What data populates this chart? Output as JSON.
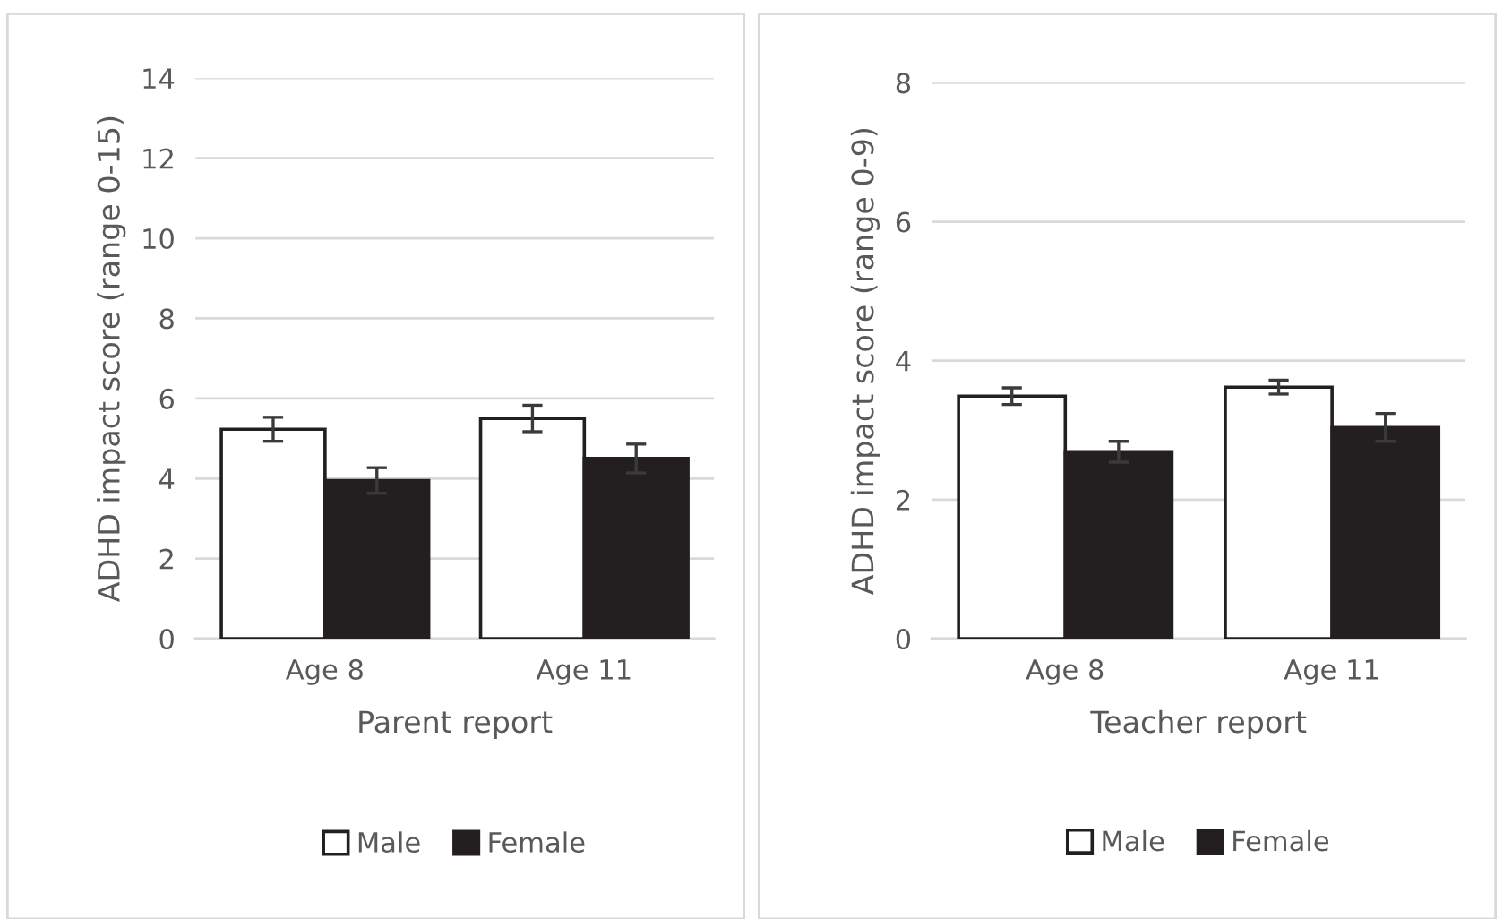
{
  "chart_data": [
    {
      "type": "bar",
      "xlabel": "Parent report",
      "ylabel": "ADHD impact score (range 0-15)",
      "categories": [
        "Age 8",
        "Age 11"
      ],
      "series": [
        {
          "name": "Male",
          "color": "#ffffff",
          "values": [
            5.23,
            5.5
          ],
          "errors": [
            0.3,
            0.33
          ]
        },
        {
          "name": "Female",
          "color": "#231f20",
          "values": [
            3.95,
            4.5
          ],
          "errors": [
            0.32,
            0.36
          ]
        }
      ],
      "ylim": [
        0,
        14
      ],
      "yticks": [
        0,
        2,
        4,
        6,
        8,
        10,
        12,
        14
      ],
      "grid": "y",
      "legend": "bottom"
    },
    {
      "type": "bar",
      "xlabel": "Teacher report",
      "ylabel": "ADHD impact score (range 0-9)",
      "categories": [
        "Age 8",
        "Age 11"
      ],
      "series": [
        {
          "name": "Male",
          "color": "#ffffff",
          "values": [
            3.49,
            3.62
          ],
          "errors": [
            0.12,
            0.1
          ]
        },
        {
          "name": "Female",
          "color": "#231f20",
          "values": [
            2.69,
            3.04
          ],
          "errors": [
            0.15,
            0.2
          ]
        }
      ],
      "ylim": [
        0,
        8
      ],
      "yticks": [
        0,
        2,
        4,
        6,
        8
      ],
      "grid": "y",
      "legend": "bottom"
    }
  ]
}
